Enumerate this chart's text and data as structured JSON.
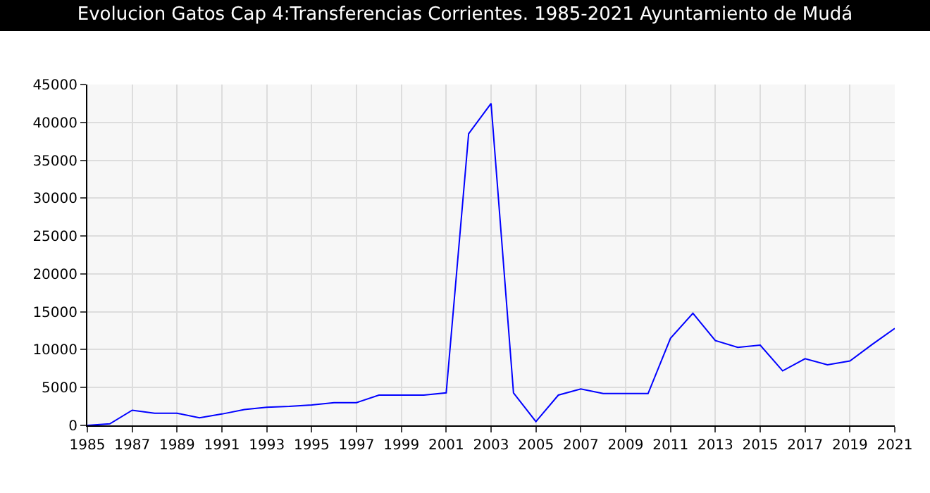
{
  "chart_data": {
    "type": "line",
    "title": "Evolucion Gatos Cap 4:Transferencias Corrientes. 1985-2021 Ayuntamiento de Mudá",
    "x": [
      1985,
      1986,
      1987,
      1988,
      1989,
      1990,
      1991,
      1992,
      1993,
      1994,
      1995,
      1996,
      1997,
      1998,
      1999,
      2000,
      2001,
      2002,
      2003,
      2004,
      2005,
      2006,
      2007,
      2008,
      2009,
      2010,
      2011,
      2012,
      2013,
      2014,
      2015,
      2016,
      2017,
      2018,
      2019,
      2020,
      2021
    ],
    "series": [
      {
        "color": "#0000ff",
        "values": [
          0,
          200,
          2000,
          1600,
          1600,
          1000,
          1500,
          2100,
          2400,
          2500,
          2700,
          3000,
          3000,
          4000,
          4000,
          4000,
          4300,
          38500,
          42500,
          4300,
          500,
          4000,
          4800,
          4200,
          4200,
          4200,
          11500,
          14800,
          11200,
          10300,
          10600,
          7200,
          8800,
          8000,
          8500,
          10700,
          12800
        ]
      }
    ],
    "xlim": [
      1985,
      2021
    ],
    "xticks": [
      1985,
      1987,
      1989,
      1991,
      1993,
      1995,
      1997,
      1999,
      2001,
      2003,
      2005,
      2007,
      2009,
      2011,
      2013,
      2015,
      2017,
      2019,
      2021
    ],
    "ylim": [
      0,
      45000
    ],
    "yticks": [
      0,
      5000,
      10000,
      15000,
      20000,
      25000,
      30000,
      35000,
      40000,
      45000
    ],
    "grid": true,
    "marker": "none",
    "line_style": "solid"
  }
}
